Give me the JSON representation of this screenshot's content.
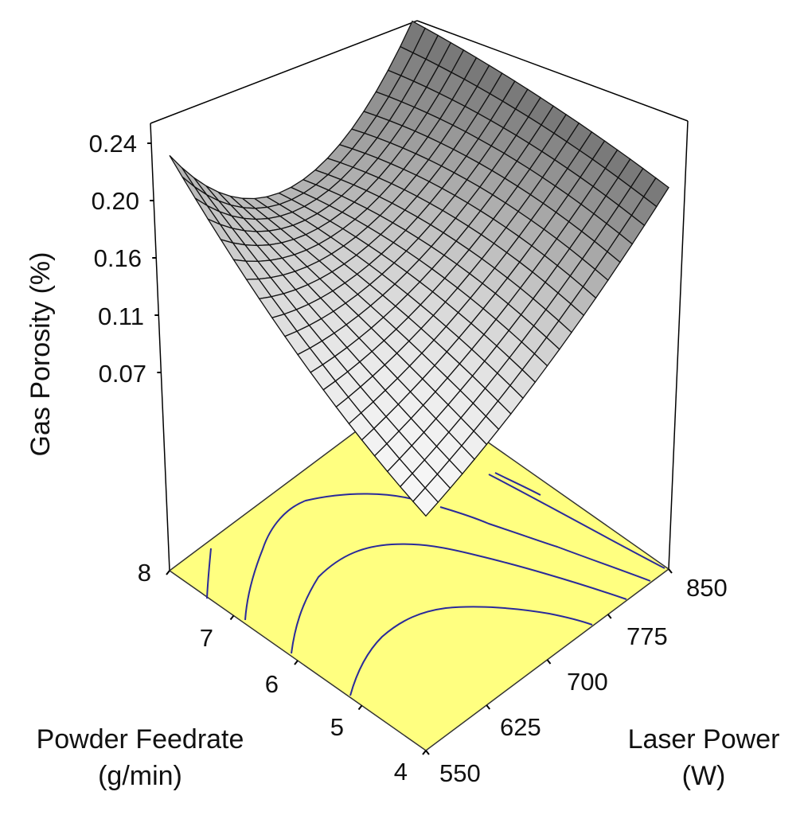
{
  "chart_data": {
    "type": "surface",
    "zlabel": "Gas Porosity (%)",
    "xlabel_line1": "Powder Feedrate",
    "xlabel_line2": "(g/min)",
    "ylabel_line1": "Laser Power",
    "ylabel_line2": "(W)",
    "z_ticks": [
      "0.24",
      "0.20",
      "0.16",
      "0.11",
      "0.07"
    ],
    "feedrate_ticks": [
      "8",
      "7",
      "6",
      "5",
      "4"
    ],
    "power_ticks": [
      "550",
      "625",
      "700",
      "775",
      "850"
    ],
    "feedrate_range": [
      4,
      8
    ],
    "power_range": [
      550,
      850
    ],
    "surface_grid": {
      "feedrate": [
        4,
        6,
        8
      ],
      "power": [
        550,
        700,
        850
      ],
      "z": [
        [
          0.097,
          0.141,
          0.206
        ],
        [
          0.15,
          0.153,
          0.206
        ],
        [
          0.231,
          0.14,
          0.196
        ]
      ]
    },
    "base_color": "#ffff80",
    "contour_color": "#2a2a9a",
    "mesh_cells": 20
  }
}
